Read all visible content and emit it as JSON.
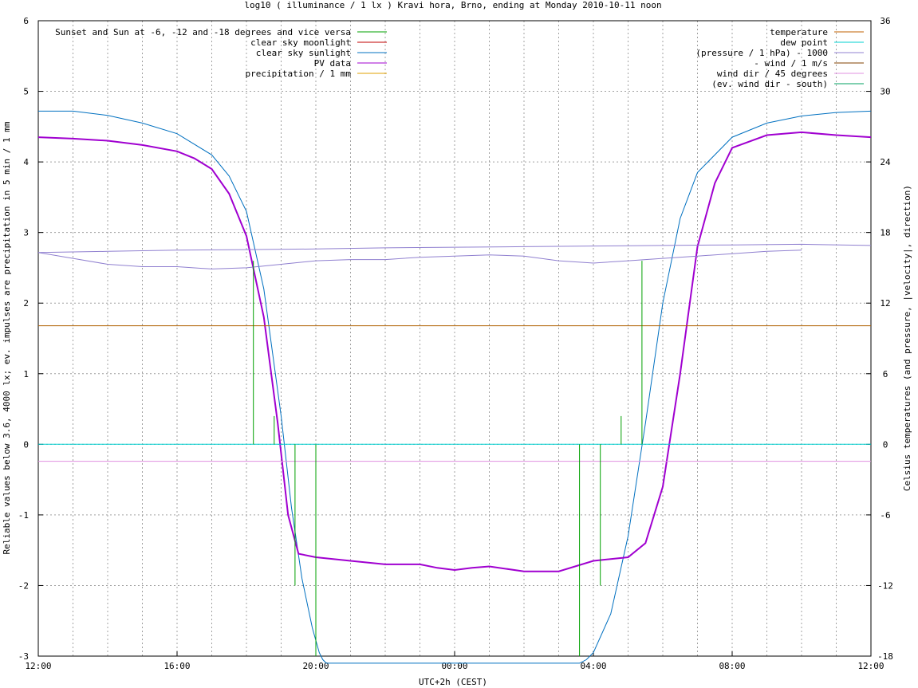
{
  "chart_data": {
    "type": "line",
    "title": "log10 ( illuminance / 1 lx ) Kravi hora, Brno, ending at Monday 2010-10-11 noon",
    "xlabel": "UTC+2h (CEST)",
    "ylabel": "Reliable values below 3.6, 4000 lx; ev. impulses are precipitation in 5 min / 1 mm",
    "y2label": "Celsius temperatures (and pressure, |velocity|, direction)",
    "xlim": [
      0,
      24
    ],
    "ylim": [
      -3,
      6
    ],
    "y2lim": [
      -18,
      36
    ],
    "x_ticks": [
      {
        "h": 0,
        "label": "12:00"
      },
      {
        "h": 4,
        "label": "16:00"
      },
      {
        "h": 8,
        "label": "20:00"
      },
      {
        "h": 12,
        "label": "00:00"
      },
      {
        "h": 16,
        "label": "04:00"
      },
      {
        "h": 20,
        "label": "08:00"
      },
      {
        "h": 24,
        "label": "12:00"
      }
    ],
    "y_ticks": [
      "-3",
      "-2",
      "-1",
      "0",
      "1",
      "2",
      "3",
      "4",
      "5",
      "6"
    ],
    "y2_ticks": [
      "-18",
      "-12",
      "-6",
      "0",
      "6",
      "12",
      "18",
      "24",
      "30",
      "36"
    ],
    "grid": true,
    "legend_left": [
      {
        "name": "Sunset and Sun at -6, -12 and -18 degrees and vice versa",
        "color": "#00a000"
      },
      {
        "name": "clear sky moonlight",
        "color": "#c00000"
      },
      {
        "name": "clear sky sunlight",
        "color": "#0070c0"
      },
      {
        "name": "PV data",
        "color": "#a000d0"
      },
      {
        "name": "precipitation / 1 mm",
        "color": "#e0a000"
      }
    ],
    "legend_right": [
      {
        "name": "temperature",
        "color": "#c06000"
      },
      {
        "name": "dew point",
        "color": "#00d0d0"
      },
      {
        "name": "(pressure / 1 hPa) - 1000",
        "color": "#9080d0"
      },
      {
        "name": "- wind / 1 m/s",
        "color": "#804000"
      },
      {
        "name": "wind dir / 45 degrees",
        "color": "#e090e0"
      },
      {
        "name": "(ev. wind dir - south)",
        "color": "#00a060"
      }
    ],
    "series": [
      {
        "name": "clear sky sunlight",
        "color": "#0070c0",
        "x": [
          0,
          1,
          2,
          3,
          4,
          5,
          5.5,
          6,
          6.5,
          7,
          7.3,
          7.6,
          7.9,
          8.1,
          8.2,
          8.3,
          15.6,
          15.8,
          16,
          16.5,
          17,
          17.5,
          18,
          18.5,
          19,
          20,
          21,
          22,
          23,
          24
        ],
        "y": [
          4.72,
          4.72,
          4.66,
          4.55,
          4.4,
          4.1,
          3.8,
          3.3,
          2.2,
          0.4,
          -0.9,
          -1.9,
          -2.6,
          -2.95,
          -3.05,
          -3.1,
          -3.1,
          -3.05,
          -2.95,
          -2.4,
          -1.3,
          0.3,
          2.0,
          3.2,
          3.85,
          4.35,
          4.55,
          4.65,
          4.7,
          4.72
        ]
      },
      {
        "name": "PV data",
        "color": "#a000d0",
        "x": [
          0,
          1,
          2,
          3,
          4,
          4.5,
          5,
          5.5,
          6,
          6.5,
          6.9,
          7.2,
          7.5,
          8,
          9,
          10,
          11,
          11.5,
          12,
          12.5,
          13,
          14,
          15,
          16,
          17,
          17.5,
          18,
          18.5,
          19,
          19.5,
          20,
          21,
          22,
          23,
          24
        ],
        "y": [
          4.35,
          4.33,
          4.3,
          4.24,
          4.15,
          4.05,
          3.9,
          3.55,
          2.95,
          1.8,
          0.3,
          -1.0,
          -1.55,
          -1.6,
          -1.65,
          -1.7,
          -1.7,
          -1.75,
          -1.78,
          -1.75,
          -1.73,
          -1.8,
          -1.8,
          -1.65,
          -1.6,
          -1.4,
          -0.6,
          1.0,
          2.8,
          3.7,
          4.2,
          4.38,
          4.42,
          4.38,
          4.35
        ]
      },
      {
        "name": "(pressure / 1 hPa) - 1000",
        "color": "#9080d0",
        "x": [
          0,
          2,
          4,
          6,
          8,
          10,
          12,
          14,
          16,
          18,
          20,
          22,
          24
        ],
        "y2": [
          16.3,
          16.4,
          16.5,
          16.55,
          16.6,
          16.7,
          16.75,
          16.8,
          16.85,
          16.9,
          16.95,
          17.0,
          16.9
        ]
      },
      {
        "name": "temperature",
        "color": "#9080d0",
        "x": [
          0,
          1,
          2,
          3,
          4,
          5,
          6,
          7,
          8,
          9,
          10,
          11,
          12,
          13,
          14,
          15,
          16,
          17,
          18,
          19,
          20,
          21,
          22
        ],
        "y2": [
          16.3,
          15.8,
          15.3,
          15.1,
          15.1,
          14.9,
          15.0,
          15.3,
          15.6,
          15.7,
          15.7,
          15.9,
          16.0,
          16.1,
          16.0,
          15.6,
          15.4,
          15.6,
          15.8,
          16.0,
          16.2,
          16.4,
          16.5
        ]
      },
      {
        "name": "- wind / 1 m/s",
        "color": "#b06000",
        "x": [
          0,
          24
        ],
        "y": [
          1.68,
          1.68
        ]
      },
      {
        "name": "dew point",
        "color": "#00d0d0",
        "x": [
          0,
          24
        ],
        "y": [
          0,
          0
        ]
      },
      {
        "name": "wind dir / 45 degrees",
        "color": "#e090e0",
        "x": [
          0,
          24
        ],
        "y": [
          -0.24,
          -0.24
        ]
      }
    ],
    "sun_impulses": {
      "color": "#00a000",
      "x": [
        6.2,
        6.8,
        7.4,
        8.0,
        15.6,
        16.2,
        16.8,
        17.4
      ],
      "y": [
        2.6,
        0.4,
        -2.0,
        -3.0,
        -3.0,
        -2.0,
        0.4,
        2.6
      ]
    }
  }
}
